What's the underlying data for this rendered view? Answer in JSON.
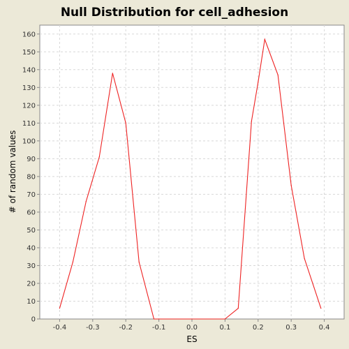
{
  "chart_data": {
    "type": "line",
    "title": "Null Distribution for cell_adhesion",
    "xlabel": "ES",
    "ylabel": "# of random values",
    "xlim": [
      -0.46,
      0.46
    ],
    "ylim": [
      0,
      165
    ],
    "x_ticks": [
      "-0.4",
      "-0.3",
      "-0.2",
      "-0.1",
      "0.0",
      "0.1",
      "0.2",
      "0.3",
      "0.4"
    ],
    "y_ticks": [
      "0",
      "10",
      "20",
      "30",
      "40",
      "50",
      "60",
      "70",
      "80",
      "90",
      "100",
      "110",
      "120",
      "130",
      "140",
      "150",
      "160"
    ],
    "grid": true,
    "series": [
      {
        "x": [
          -0.4,
          -0.36,
          -0.32,
          -0.28,
          -0.24,
          -0.2,
          -0.16,
          -0.115,
          0.1,
          0.14,
          0.18,
          0.2,
          0.22,
          0.26,
          0.3,
          0.34,
          0.39
        ],
        "y": [
          6,
          32,
          66,
          91,
          138,
          110,
          32,
          0,
          0,
          6,
          111,
          133,
          157,
          137,
          75,
          34,
          6
        ]
      }
    ],
    "colors": {
      "series": "#ee2222",
      "plot_bg": "#ffffff",
      "grid": "#d8d8d8",
      "frame": "#888888"
    }
  }
}
